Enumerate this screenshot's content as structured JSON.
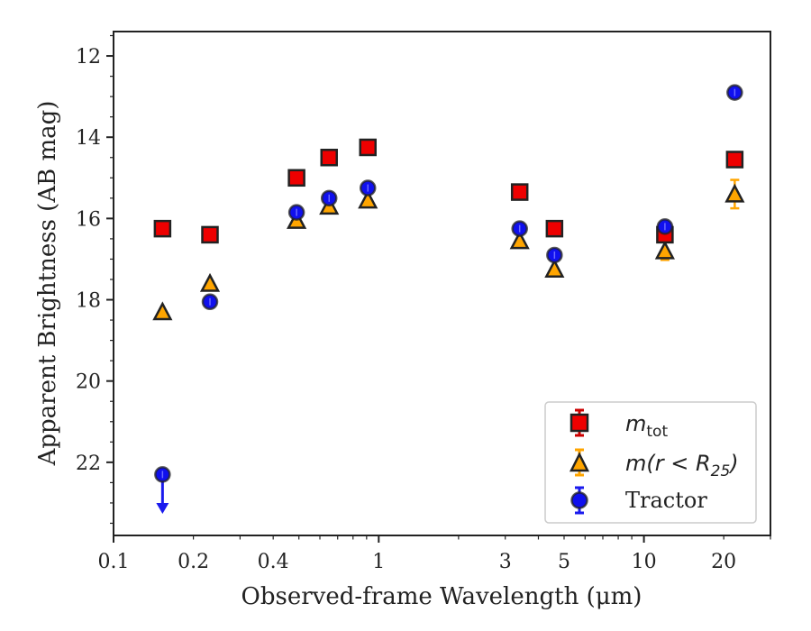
{
  "chart_data": {
    "type": "scatter",
    "xscale": "log",
    "xlim": [
      0.1,
      30
    ],
    "ylim": [
      23.8,
      11.4
    ],
    "y_inverted": true,
    "xlabel": "Observed-frame Wavelength (μm)",
    "ylabel": "Apparent Brightness (AB mag)",
    "x_ticks": [
      0.1,
      0.2,
      0.4,
      1,
      3,
      5,
      10,
      20
    ],
    "x_tick_labels": [
      "0.1",
      "0.2",
      "0.4",
      "1",
      "3",
      "5",
      "10",
      "20"
    ],
    "y_ticks": [
      12,
      14,
      16,
      18,
      20,
      22
    ],
    "y_tick_labels": [
      "12",
      "14",
      "16",
      "18",
      "20",
      "22"
    ],
    "legend": {
      "placement": "lower-right"
    },
    "series": [
      {
        "name": "m_tot",
        "marker": "square",
        "color": "#ee0000",
        "error_color": "#cc0000",
        "x": [
          0.153,
          0.231,
          0.49,
          0.65,
          0.91,
          3.4,
          4.6,
          12.0,
          22.0
        ],
        "y": [
          16.25,
          16.4,
          15.0,
          14.5,
          14.25,
          15.35,
          16.25,
          16.4,
          14.55
        ]
      },
      {
        "name": "m(r<R25)",
        "marker": "triangle",
        "color": "#ffa500",
        "error_color": "#ffa500",
        "x": [
          0.153,
          0.231,
          0.49,
          0.65,
          0.91,
          3.4,
          4.6,
          12.0,
          22.0
        ],
        "y": [
          18.3,
          17.6,
          16.05,
          15.7,
          15.55,
          16.55,
          17.25,
          16.8,
          15.4
        ],
        "yerr": [
          0,
          0,
          0,
          0,
          0,
          0,
          0,
          0.22,
          0.35
        ]
      },
      {
        "name": "Tractor",
        "marker": "circle",
        "color": "#1010ee",
        "error_color": "#1a1aee",
        "x": [
          0.153,
          0.231,
          0.49,
          0.65,
          0.91,
          3.4,
          4.6,
          12.0,
          22.0
        ],
        "y": [
          22.3,
          18.05,
          15.85,
          15.5,
          15.25,
          16.25,
          16.9,
          16.2,
          12.9
        ],
        "upper_limit_index": 0,
        "upper_limit_to": 23.2
      }
    ]
  },
  "legend_labels": {
    "mtot_main": "m",
    "mtot_sub": "tot",
    "mr_main": "m(r < R",
    "mr_sub": "25",
    "mr_close": ")",
    "tractor": "Tractor"
  }
}
